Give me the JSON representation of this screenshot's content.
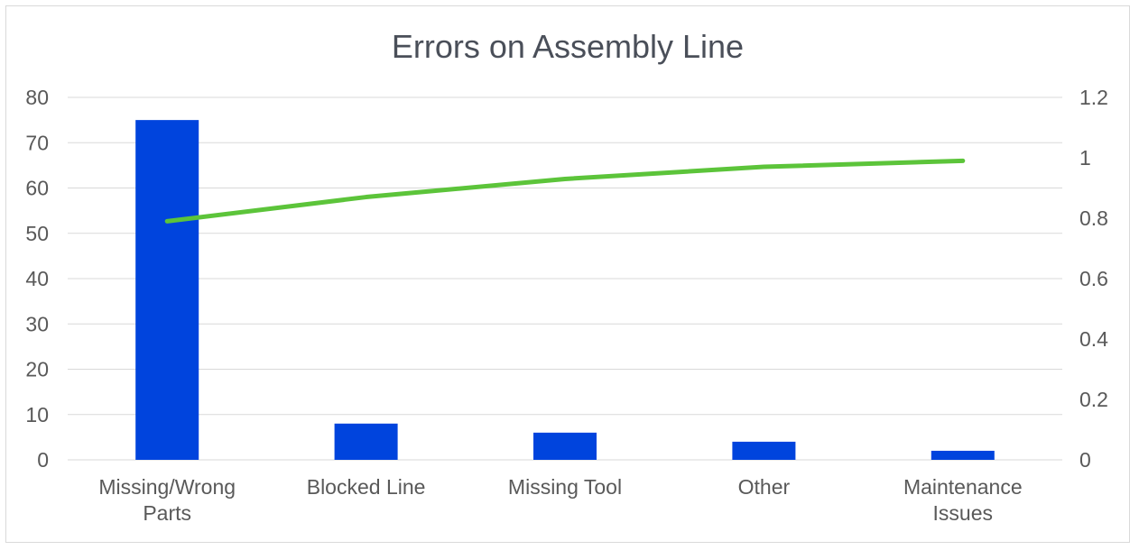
{
  "chart_data": {
    "type": "bar",
    "title": "Errors on Assembly Line",
    "categories": [
      [
        "Missing/Wrong",
        "Parts"
      ],
      [
        "Blocked Line"
      ],
      [
        "Missing Tool"
      ],
      [
        "Other"
      ],
      [
        "Maintenance",
        "Issues"
      ]
    ],
    "series": [
      {
        "type": "bar",
        "axis": "left",
        "values": [
          75,
          8,
          6,
          4,
          2
        ],
        "color": "#0044dd"
      },
      {
        "type": "line",
        "axis": "right",
        "values": [
          0.79,
          0.87,
          0.93,
          0.97,
          0.99
        ],
        "color": "#5cc43a"
      }
    ],
    "y_left": {
      "min": 0,
      "max": 80,
      "ticks": [
        "0",
        "10",
        "20",
        "30",
        "40",
        "50",
        "60",
        "70",
        "80"
      ]
    },
    "y_right": {
      "min": 0,
      "max": 1.2,
      "ticks": [
        "0",
        "0.2",
        "0.4",
        "0.6",
        "0.8",
        "1",
        "1.2"
      ]
    },
    "grid": true,
    "gridline_color": "#d9d9d9",
    "legend": "none"
  }
}
